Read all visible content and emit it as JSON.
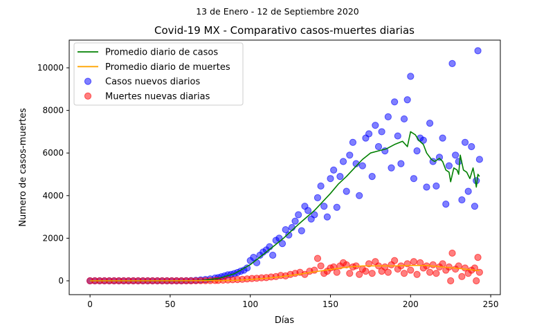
{
  "chart_data": {
    "type": "scatter",
    "suptitle": "13 de Enero - 12 de Septiembre 2020",
    "title": "Covid-19 MX - Comparativo casos-muertes diarias",
    "xlabel": "Días",
    "ylabel": "Numero de casos-muertes",
    "xlim": [
      -13,
      256
    ],
    "ylim": [
      -650,
      11300
    ],
    "xticks": [
      0,
      50,
      100,
      150,
      200,
      250
    ],
    "yticks": [
      0,
      2000,
      4000,
      6000,
      8000,
      10000
    ],
    "legend_position": "upper-left",
    "colors": {
      "cases_scatter": "#0000ff",
      "deaths_scatter": "#ff0000",
      "cases_avg": "#008000",
      "deaths_avg": "#ffa500"
    },
    "legend": [
      {
        "label": "Promedio diario de casos",
        "kind": "line",
        "color": "#008000"
      },
      {
        "label": "Promedio diario de muertes",
        "kind": "line",
        "color": "#ffa500"
      },
      {
        "label": "Casos nuevos diarios",
        "kind": "marker",
        "color": "#0000ff"
      },
      {
        "label": "Muertes nuevas diarias",
        "kind": "marker",
        "color": "#ff0000"
      }
    ],
    "series": [
      {
        "name": "Promedio diario de casos",
        "kind": "line",
        "points": [
          [
            0,
            0
          ],
          [
            60,
            0
          ],
          [
            70,
            20
          ],
          [
            80,
            110
          ],
          [
            90,
            330
          ],
          [
            100,
            760
          ],
          [
            110,
            1350
          ],
          [
            120,
            1950
          ],
          [
            130,
            2650
          ],
          [
            140,
            3300
          ],
          [
            150,
            4100
          ],
          [
            155,
            4550
          ],
          [
            160,
            4900
          ],
          [
            165,
            5300
          ],
          [
            170,
            5700
          ],
          [
            175,
            6000
          ],
          [
            180,
            6100
          ],
          [
            185,
            6200
          ],
          [
            190,
            6400
          ],
          [
            195,
            6550
          ],
          [
            198,
            6300
          ],
          [
            200,
            7000
          ],
          [
            203,
            6850
          ],
          [
            205,
            6600
          ],
          [
            208,
            6400
          ],
          [
            210,
            6000
          ],
          [
            213,
            5700
          ],
          [
            215,
            5600
          ],
          [
            218,
            5750
          ],
          [
            220,
            5600
          ],
          [
            222,
            5200
          ],
          [
            224,
            5100
          ],
          [
            225,
            4650
          ],
          [
            227,
            5300
          ],
          [
            229,
            5200
          ],
          [
            230,
            5000
          ],
          [
            231,
            5900
          ],
          [
            233,
            5200
          ],
          [
            235,
            5100
          ],
          [
            237,
            4800
          ],
          [
            239,
            5300
          ],
          [
            240,
            4900
          ],
          [
            241,
            4400
          ],
          [
            242,
            5000
          ],
          [
            243,
            4900
          ]
        ]
      },
      {
        "name": "Promedio diario de muertes",
        "kind": "line",
        "points": [
          [
            0,
            0
          ],
          [
            80,
            5
          ],
          [
            90,
            20
          ],
          [
            100,
            60
          ],
          [
            110,
            120
          ],
          [
            120,
            200
          ],
          [
            130,
            300
          ],
          [
            140,
            420
          ],
          [
            150,
            530
          ],
          [
            160,
            640
          ],
          [
            170,
            700
          ],
          [
            180,
            700
          ],
          [
            190,
            700
          ],
          [
            200,
            720
          ],
          [
            210,
            720
          ],
          [
            220,
            650
          ],
          [
            230,
            580
          ],
          [
            240,
            500
          ],
          [
            243,
            480
          ]
        ]
      },
      {
        "name": "Casos nuevos diarios",
        "kind": "scatter",
        "points": [
          [
            0,
            0
          ],
          [
            3,
            0
          ],
          [
            6,
            0
          ],
          [
            9,
            0
          ],
          [
            12,
            0
          ],
          [
            15,
            0
          ],
          [
            18,
            0
          ],
          [
            21,
            0
          ],
          [
            24,
            0
          ],
          [
            27,
            0
          ],
          [
            30,
            0
          ],
          [
            33,
            0
          ],
          [
            36,
            0
          ],
          [
            39,
            0
          ],
          [
            42,
            0
          ],
          [
            45,
            0
          ],
          [
            48,
            0
          ],
          [
            51,
            0
          ],
          [
            54,
            0
          ],
          [
            57,
            0
          ],
          [
            60,
            5
          ],
          [
            63,
            10
          ],
          [
            66,
            20
          ],
          [
            69,
            40
          ],
          [
            72,
            60
          ],
          [
            75,
            90
          ],
          [
            78,
            130
          ],
          [
            80,
            150
          ],
          [
            82,
            190
          ],
          [
            84,
            230
          ],
          [
            86,
            280
          ],
          [
            88,
            300
          ],
          [
            90,
            340
          ],
          [
            92,
            390
          ],
          [
            94,
            450
          ],
          [
            96,
            500
          ],
          [
            98,
            600
          ],
          [
            100,
            950
          ],
          [
            102,
            1100
          ],
          [
            104,
            850
          ],
          [
            106,
            1200
          ],
          [
            108,
            1350
          ],
          [
            110,
            1450
          ],
          [
            112,
            1600
          ],
          [
            114,
            1200
          ],
          [
            116,
            1900
          ],
          [
            118,
            2000
          ],
          [
            120,
            1750
          ],
          [
            122,
            2400
          ],
          [
            124,
            2150
          ],
          [
            126,
            2500
          ],
          [
            128,
            2800
          ],
          [
            130,
            3100
          ],
          [
            132,
            2350
          ],
          [
            134,
            3500
          ],
          [
            136,
            3300
          ],
          [
            138,
            2900
          ],
          [
            140,
            3100
          ],
          [
            142,
            3900
          ],
          [
            144,
            4450
          ],
          [
            146,
            3500
          ],
          [
            148,
            3000
          ],
          [
            150,
            4800
          ],
          [
            152,
            5200
          ],
          [
            154,
            3450
          ],
          [
            156,
            4900
          ],
          [
            158,
            5600
          ],
          [
            160,
            4200
          ],
          [
            162,
            5900
          ],
          [
            164,
            6500
          ],
          [
            166,
            5500
          ],
          [
            168,
            4000
          ],
          [
            170,
            5400
          ],
          [
            172,
            6700
          ],
          [
            174,
            6900
          ],
          [
            176,
            4900
          ],
          [
            178,
            7300
          ],
          [
            180,
            6300
          ],
          [
            182,
            7000
          ],
          [
            184,
            6100
          ],
          [
            186,
            7700
          ],
          [
            188,
            5300
          ],
          [
            190,
            8400
          ],
          [
            192,
            6800
          ],
          [
            194,
            5500
          ],
          [
            196,
            7600
          ],
          [
            198,
            8500
          ],
          [
            200,
            9600
          ],
          [
            202,
            4800
          ],
          [
            204,
            6100
          ],
          [
            206,
            6700
          ],
          [
            208,
            6600
          ],
          [
            210,
            4400
          ],
          [
            212,
            7400
          ],
          [
            214,
            5600
          ],
          [
            216,
            4450
          ],
          [
            218,
            5800
          ],
          [
            220,
            6700
          ],
          [
            222,
            3600
          ],
          [
            224,
            5400
          ],
          [
            226,
            10200
          ],
          [
            228,
            5900
          ],
          [
            230,
            5600
          ],
          [
            232,
            3800
          ],
          [
            234,
            6500
          ],
          [
            236,
            4200
          ],
          [
            238,
            6300
          ],
          [
            240,
            3500
          ],
          [
            241,
            4700
          ],
          [
            242,
            10800
          ],
          [
            243,
            5700
          ]
        ]
      },
      {
        "name": "Muertes nuevas diarias",
        "kind": "scatter",
        "points": [
          [
            0,
            0
          ],
          [
            3,
            0
          ],
          [
            6,
            0
          ],
          [
            9,
            0
          ],
          [
            12,
            0
          ],
          [
            15,
            0
          ],
          [
            18,
            0
          ],
          [
            21,
            0
          ],
          [
            24,
            0
          ],
          [
            27,
            0
          ],
          [
            30,
            0
          ],
          [
            33,
            0
          ],
          [
            36,
            0
          ],
          [
            39,
            0
          ],
          [
            42,
            0
          ],
          [
            45,
            0
          ],
          [
            48,
            0
          ],
          [
            51,
            0
          ],
          [
            54,
            0
          ],
          [
            57,
            0
          ],
          [
            60,
            0
          ],
          [
            63,
            0
          ],
          [
            66,
            2
          ],
          [
            69,
            5
          ],
          [
            72,
            8
          ],
          [
            75,
            10
          ],
          [
            78,
            15
          ],
          [
            80,
            20
          ],
          [
            83,
            30
          ],
          [
            86,
            40
          ],
          [
            89,
            50
          ],
          [
            92,
            60
          ],
          [
            95,
            70
          ],
          [
            98,
            90
          ],
          [
            101,
            110
          ],
          [
            104,
            120
          ],
          [
            107,
            140
          ],
          [
            110,
            150
          ],
          [
            113,
            180
          ],
          [
            116,
            200
          ],
          [
            119,
            250
          ],
          [
            122,
            230
          ],
          [
            125,
            300
          ],
          [
            128,
            350
          ],
          [
            131,
            400
          ],
          [
            134,
            300
          ],
          [
            137,
            450
          ],
          [
            140,
            500
          ],
          [
            142,
            1050
          ],
          [
            144,
            700
          ],
          [
            146,
            350
          ],
          [
            148,
            450
          ],
          [
            150,
            600
          ],
          [
            152,
            650
          ],
          [
            154,
            400
          ],
          [
            156,
            700
          ],
          [
            158,
            850
          ],
          [
            160,
            750
          ],
          [
            162,
            350
          ],
          [
            164,
            650
          ],
          [
            166,
            700
          ],
          [
            168,
            300
          ],
          [
            170,
            550
          ],
          [
            172,
            450
          ],
          [
            174,
            800
          ],
          [
            176,
            350
          ],
          [
            178,
            900
          ],
          [
            180,
            700
          ],
          [
            182,
            450
          ],
          [
            184,
            650
          ],
          [
            186,
            400
          ],
          [
            188,
            750
          ],
          [
            190,
            950
          ],
          [
            192,
            550
          ],
          [
            194,
            700
          ],
          [
            196,
            350
          ],
          [
            198,
            800
          ],
          [
            200,
            500
          ],
          [
            202,
            900
          ],
          [
            204,
            300
          ],
          [
            206,
            850
          ],
          [
            208,
            600
          ],
          [
            210,
            700
          ],
          [
            212,
            400
          ],
          [
            214,
            750
          ],
          [
            216,
            350
          ],
          [
            218,
            650
          ],
          [
            220,
            800
          ],
          [
            222,
            500
          ],
          [
            224,
            650
          ],
          [
            225,
            0
          ],
          [
            226,
            1300
          ],
          [
            228,
            550
          ],
          [
            230,
            700
          ],
          [
            232,
            200
          ],
          [
            234,
            600
          ],
          [
            236,
            350
          ],
          [
            238,
            500
          ],
          [
            240,
            600
          ],
          [
            241,
            0
          ],
          [
            242,
            1100
          ],
          [
            243,
            400
          ]
        ]
      }
    ]
  }
}
